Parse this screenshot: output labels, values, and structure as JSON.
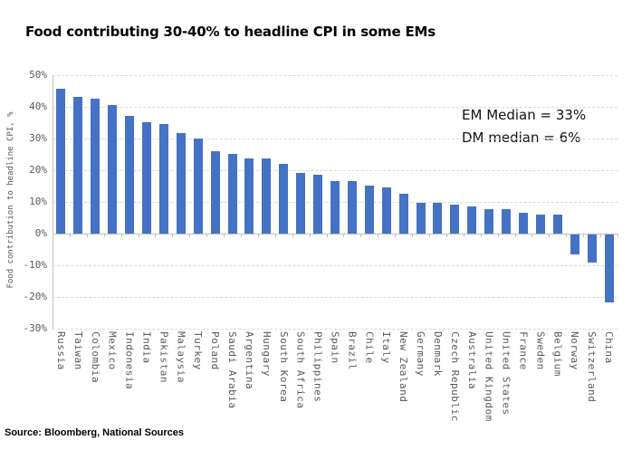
{
  "page": {
    "title": "Food contributing 30-40% to headline CPI in some EMs",
    "source_note": "Source: Bloomberg, National Sources"
  },
  "annotations": {
    "em_median": "EM Median = 33%",
    "dm_median": "DM median = 6%"
  },
  "chart_data": {
    "type": "bar",
    "title": "Food contributing 30-40% to headline CPI in some EMs",
    "ylabel": "Food contribution to headline CPI, %",
    "xlabel": "",
    "ylim": [
      -30,
      50
    ],
    "ytick_step": 10,
    "ytick_labels": [
      "50%",
      "40%",
      "30%",
      "20%",
      "10%",
      "0%",
      "-10%",
      "-20%",
      "-30%"
    ],
    "grid": "horizontal-dashed",
    "legend": "none",
    "bar_color": "#4472C4",
    "categories": [
      "Russia",
      "Taiwan",
      "Colombia",
      "Mexico",
      "Indonesia",
      "India",
      "Pakistan",
      "Malaysia",
      "Turkey",
      "Poland",
      "Saudi Arabia",
      "Argentina",
      "Hungary",
      "South Korea",
      "South Africa",
      "Philippines",
      "Spain",
      "Brazil",
      "Chile",
      "Italy",
      "New Zealand",
      "Germany",
      "Denmark",
      "Czech Republic",
      "Australia",
      "United Kingdom",
      "United States",
      "France",
      "Sweden",
      "Belgium",
      "Norway",
      "Switzerland",
      "China"
    ],
    "values": [
      45.5,
      43,
      42.5,
      40.5,
      37,
      35,
      34.5,
      31.5,
      30,
      26,
      25,
      23.5,
      23.5,
      22,
      19,
      18.5,
      16.5,
      16.5,
      15,
      14.5,
      12.5,
      9.5,
      9.5,
      9,
      8.5,
      7.5,
      7.5,
      6.5,
      6,
      6,
      -6.5,
      -9,
      -21.5
    ],
    "annotations": [
      {
        "text": "EM Median = 33%",
        "position": "upper-right"
      },
      {
        "text": "DM median = 6%",
        "position": "upper-right"
      }
    ]
  },
  "colors": {
    "bar": "#4472C4",
    "gridline": "#D9D9D9",
    "axis_line": "#BFBFBF",
    "axis_text": "#595959",
    "title_text": "#000000",
    "background": "#FFFFFF"
  }
}
